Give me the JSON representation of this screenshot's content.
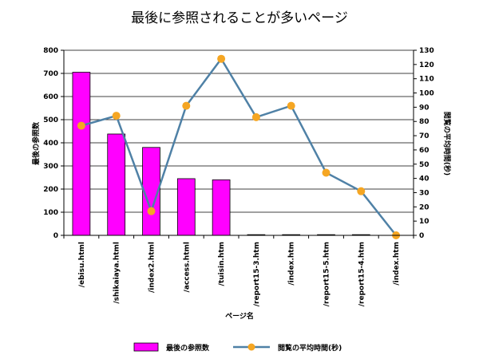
{
  "chart_data": {
    "type": "bar+line",
    "title": "最後に参照されることが多いページ",
    "xlabel": "ページ名",
    "ylabel_left": "最後の参照数",
    "ylabel_right": "閲覧の平均時間(秒)",
    "categories": [
      "/ebisu.html",
      "/shikaiaya.html",
      "/index2.html",
      "/access.html",
      "/tuisin.htm",
      "/report15-3.htm",
      "/index.htm",
      "/report15-5.htm",
      "/report15-4.htm",
      "/index.htm"
    ],
    "ylim_left": [
      0,
      800
    ],
    "yticks_left": [
      0,
      100,
      200,
      300,
      400,
      500,
      600,
      700,
      800
    ],
    "ylim_right": [
      0,
      130
    ],
    "yticks_right": [
      0,
      10,
      20,
      30,
      40,
      50,
      60,
      70,
      80,
      90,
      100,
      110,
      120,
      130
    ],
    "grid": true,
    "legend_position": "bottom",
    "series": [
      {
        "name": "最後の参照数",
        "kind": "bar",
        "axis": "left",
        "color": "#ff00ff",
        "values": [
          705,
          438,
          380,
          245,
          240,
          3,
          3,
          3,
          3,
          0
        ]
      },
      {
        "name": "閲覧の平均時間(秒)",
        "kind": "line",
        "axis": "right",
        "color": "#4f81a6",
        "marker_color": "#f5a623",
        "values": [
          77,
          84,
          17,
          91,
          124,
          83,
          91,
          44,
          31,
          0
        ]
      }
    ]
  }
}
